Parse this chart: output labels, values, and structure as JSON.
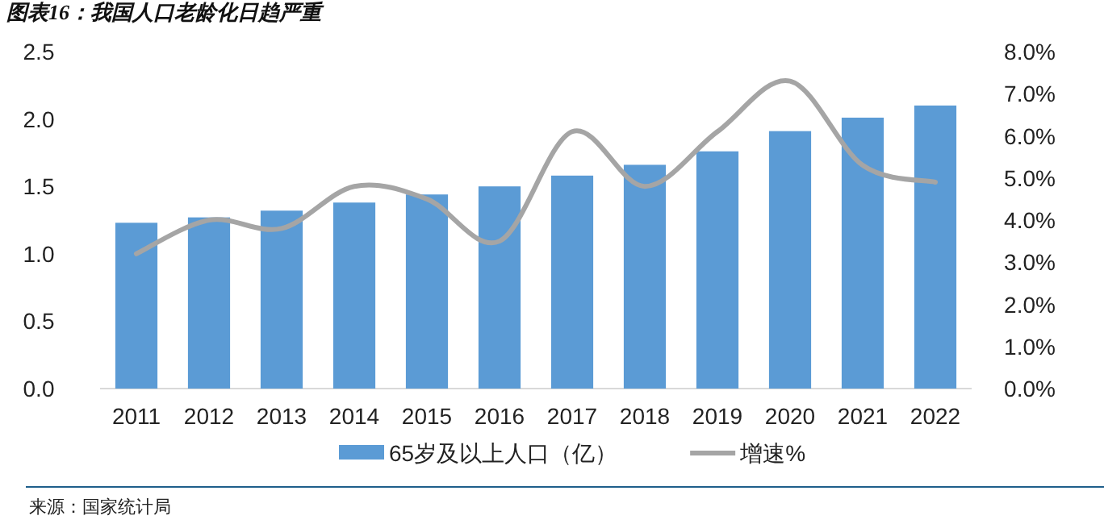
{
  "chart_data": {
    "type": "bar",
    "title": "图表16：我国人口老龄化日趋严重",
    "categories": [
      "2011",
      "2012",
      "2013",
      "2014",
      "2015",
      "2016",
      "2017",
      "2018",
      "2019",
      "2020",
      "2021",
      "2022"
    ],
    "series": [
      {
        "name": "65岁及以上人口（亿）",
        "color": "#5b9bd5",
        "values": [
          1.23,
          1.27,
          1.32,
          1.38,
          1.44,
          1.5,
          1.58,
          1.66,
          1.76,
          1.91,
          2.01,
          2.1
        ]
      },
      {
        "name": "增速%",
        "type": "line",
        "axis": "y2",
        "color": "#a5a5a5",
        "values": [
          3.2,
          4.0,
          3.8,
          4.8,
          4.5,
          3.5,
          6.1,
          4.8,
          6.1,
          7.3,
          5.3,
          4.9
        ]
      }
    ],
    "ylim": [
      0,
      2.5
    ],
    "yticks": [
      {
        "value": 0,
        "label": "0.0"
      },
      {
        "value": 0.5,
        "label": "0.5"
      },
      {
        "value": 1,
        "label": "1.0"
      },
      {
        "value": 1.5,
        "label": "1.5"
      },
      {
        "value": 2,
        "label": "2.0"
      },
      {
        "value": 2.5,
        "label": "2.5"
      }
    ],
    "y2lim": [
      0,
      8
    ],
    "y2ticks": [
      {
        "value": 0,
        "label": "0.0%"
      },
      {
        "value": 1,
        "label": "1.0%"
      },
      {
        "value": 2,
        "label": "2.0%"
      },
      {
        "value": 3,
        "label": "3.0%"
      },
      {
        "value": 4,
        "label": "4.0%"
      },
      {
        "value": 5,
        "label": "5.0%"
      },
      {
        "value": 6,
        "label": "6.0%"
      },
      {
        "value": 7,
        "label": "7.0%"
      },
      {
        "value": 8,
        "label": "8.0%"
      }
    ],
    "legend": "bottom",
    "grid": false,
    "annotations": [
      "来源：国家统计局"
    ]
  }
}
